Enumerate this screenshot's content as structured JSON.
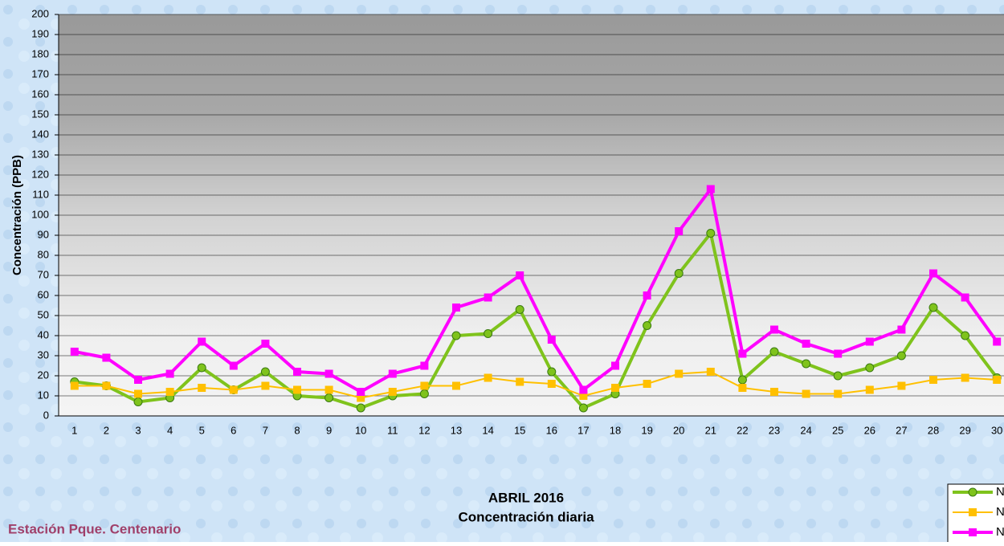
{
  "chart_data": {
    "type": "line",
    "title": "ABRIL 2016",
    "subtitle": "Concentración diaria",
    "ylabel": "Concentración  (PPB)",
    "annotation": "Estación Pque. Centenario",
    "categories": [
      "1",
      "2",
      "3",
      "4",
      "5",
      "6",
      "7",
      "8",
      "9",
      "10",
      "11",
      "12",
      "13",
      "14",
      "15",
      "16",
      "17",
      "18",
      "19",
      "20",
      "21",
      "22",
      "23",
      "24",
      "25",
      "26",
      "27",
      "28",
      "29",
      "30"
    ],
    "series": [
      {
        "name": "N",
        "color": "#7fc31c",
        "marker": "circle",
        "values": [
          17,
          15,
          7,
          9,
          24,
          13,
          22,
          10,
          9,
          4,
          10,
          11,
          40,
          41,
          53,
          22,
          4,
          11,
          45,
          71,
          91,
          18,
          32,
          26,
          20,
          24,
          30,
          54,
          40,
          19
        ]
      },
      {
        "name": "N",
        "color": "#ffc000",
        "marker": "square",
        "values": [
          15,
          15,
          11,
          12,
          14,
          13,
          15,
          13,
          13,
          9,
          12,
          15,
          15,
          19,
          17,
          16,
          10,
          14,
          16,
          21,
          22,
          14,
          12,
          11,
          11,
          13,
          15,
          18,
          19,
          18
        ]
      },
      {
        "name": "N",
        "color": "#ff00ff",
        "marker": "square",
        "values": [
          32,
          29,
          18,
          21,
          37,
          25,
          36,
          22,
          21,
          12,
          21,
          25,
          54,
          59,
          70,
          38,
          13,
          25,
          60,
          92,
          113,
          31,
          43,
          36,
          31,
          37,
          43,
          71,
          59,
          37
        ]
      }
    ],
    "ylim": [
      0,
      200
    ],
    "yticks": [
      0,
      10,
      20,
      30,
      40,
      50,
      60,
      70,
      80,
      90,
      100,
      110,
      120,
      130,
      140,
      150,
      160,
      170,
      180,
      190,
      200
    ],
    "grid": true,
    "legend": "bottom-right"
  }
}
